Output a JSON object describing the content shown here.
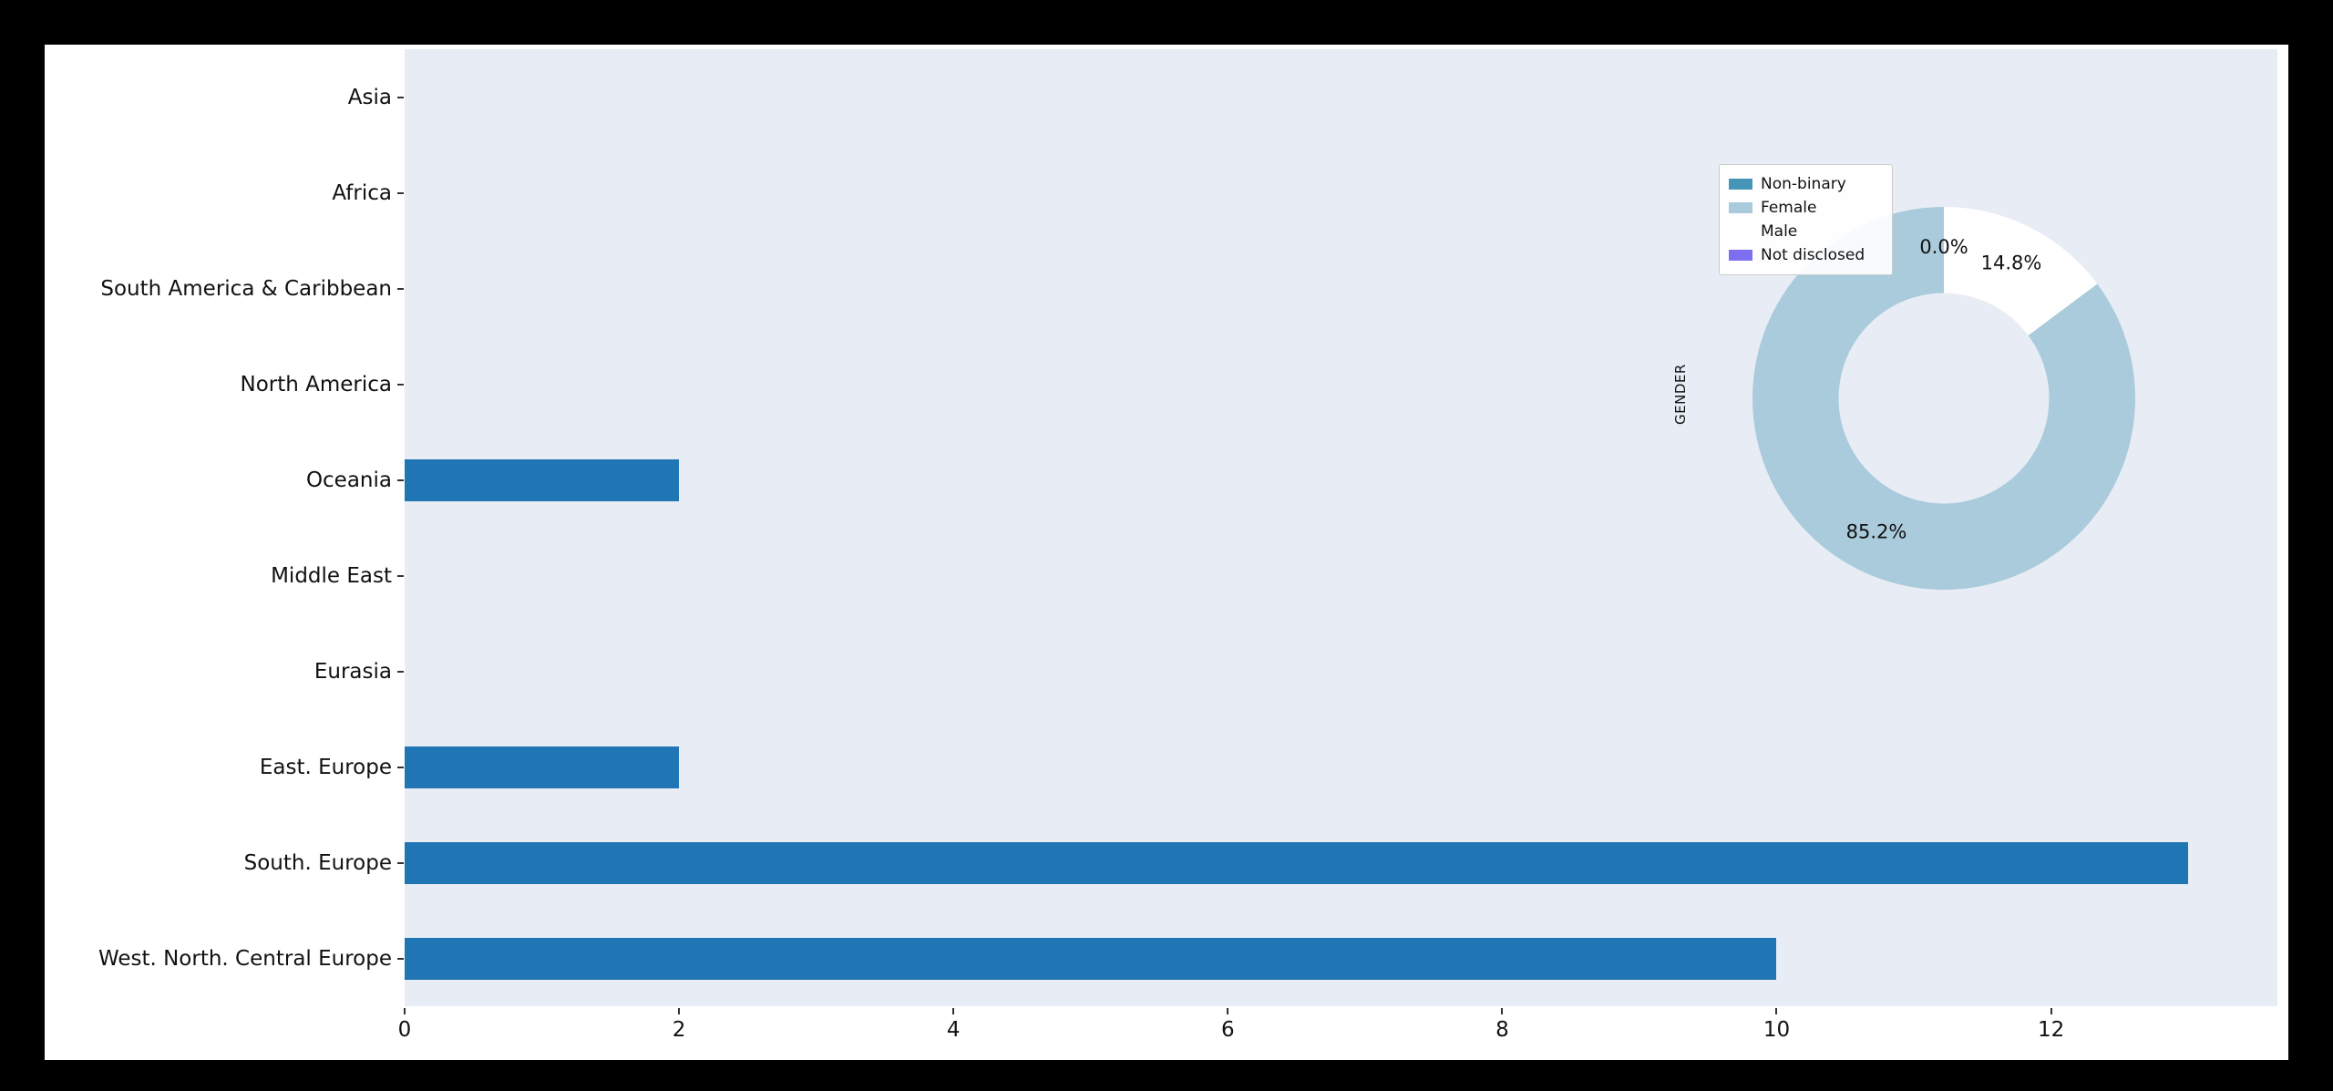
{
  "figure": {
    "page_bg": "#000000",
    "figure_bg": "#ffffff",
    "plot_bg": "#e8ecf4",
    "text_color": "#111111"
  },
  "chart_data": [
    {
      "type": "bar",
      "orientation": "horizontal",
      "title": "",
      "xlabel": "",
      "ylabel": "",
      "categories": [
        "Asia",
        "Africa",
        "South America & Caribbean",
        "North America",
        "Oceania",
        "Middle East",
        "Eurasia",
        "East. Europe",
        "South. Europe",
        "West. North. Central Europe"
      ],
      "values": [
        0,
        0,
        0,
        0,
        2,
        0,
        0,
        2,
        13,
        10
      ],
      "x_ticks": [
        0,
        2,
        4,
        6,
        8,
        10,
        12
      ],
      "xlim": [
        0,
        13.65
      ],
      "bar_color": "#2076b4",
      "grid": false
    },
    {
      "type": "pie",
      "subtype": "donut",
      "axis_label": "GENDER",
      "slices": [
        {
          "label": "Non-binary",
          "value": 0.0,
          "pct_label": "0.0%",
          "color": "#4695b8"
        },
        {
          "label": "Female",
          "value": 85.2,
          "pct_label": "85.2%",
          "color": "#a9cbdc"
        },
        {
          "label": "Male",
          "value": 14.8,
          "pct_label": "14.8%",
          "color": "#ffffff"
        },
        {
          "label": "Not disclosed",
          "value": 0.0,
          "pct_label": "",
          "color": "#7d6ff0"
        }
      ],
      "start_angle": 90,
      "counterclockwise": true,
      "hole_ratio": 0.55,
      "legend_position": "upper-left"
    }
  ]
}
